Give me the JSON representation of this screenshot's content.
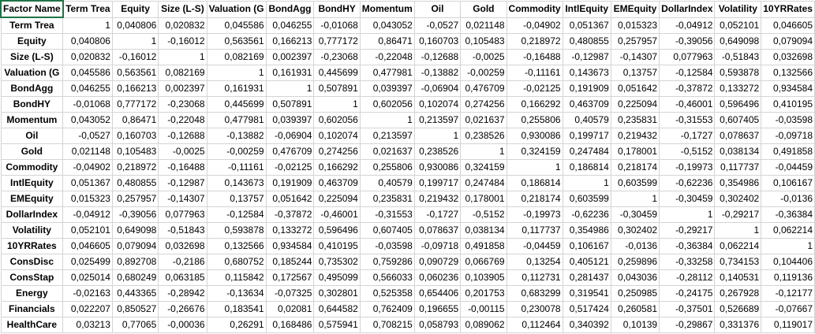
{
  "header": [
    "Factor Name",
    "Term Trea",
    "Equity",
    "Size (L-S)",
    "Valuation (G",
    "BondAgg",
    "BondHY",
    "Momentum",
    "Oil",
    "Gold",
    "Commodity",
    "IntlEquity",
    "EMEquity",
    "DollarIndex",
    "Volatility",
    "10YRRates"
  ],
  "rows": [
    {
      "name": "Term Trea",
      "values": [
        "1",
        "0,040806",
        "0,020832",
        "0,045586",
        "0,046255",
        "-0,01068",
        "0,043052",
        "-0,0527",
        "0,021148",
        "-0,04902",
        "0,051367",
        "0,015323",
        "-0,04912",
        "0,052101",
        "0,046605"
      ]
    },
    {
      "name": "Equity",
      "values": [
        "0,040806",
        "1",
        "-0,16012",
        "0,563561",
        "0,166213",
        "0,777172",
        "0,86471",
        "0,160703",
        "0,105483",
        "0,218972",
        "0,480855",
        "0,257957",
        "-0,39056",
        "0,649098",
        "0,079094"
      ]
    },
    {
      "name": "Size (L-S)",
      "values": [
        "0,020832",
        "-0,16012",
        "1",
        "0,082169",
        "0,002397",
        "-0,23068",
        "-0,22048",
        "-0,12688",
        "-0,0025",
        "-0,16488",
        "-0,12987",
        "-0,14307",
        "0,077963",
        "-0,51843",
        "0,032698"
      ]
    },
    {
      "name": "Valuation (G",
      "values": [
        "0,045586",
        "0,563561",
        "0,082169",
        "1",
        "0,161931",
        "0,445699",
        "0,477981",
        "-0,13882",
        "-0,00259",
        "-0,11161",
        "0,143673",
        "0,13757",
        "-0,12584",
        "0,593878",
        "0,132566"
      ]
    },
    {
      "name": "BondAgg",
      "values": [
        "0,046255",
        "0,166213",
        "0,002397",
        "0,161931",
        "1",
        "0,507891",
        "0,039397",
        "-0,06904",
        "0,476709",
        "-0,02125",
        "0,191909",
        "0,051642",
        "-0,37872",
        "0,133272",
        "0,934584"
      ]
    },
    {
      "name": "BondHY",
      "values": [
        "-0,01068",
        "0,777172",
        "-0,23068",
        "0,445699",
        "0,507891",
        "1",
        "0,602056",
        "0,102074",
        "0,274256",
        "0,166292",
        "0,463709",
        "0,225094",
        "-0,46001",
        "0,596496",
        "0,410195"
      ]
    },
    {
      "name": "Momentum",
      "values": [
        "0,043052",
        "0,86471",
        "-0,22048",
        "0,477981",
        "0,039397",
        "0,602056",
        "1",
        "0,213597",
        "0,021637",
        "0,255806",
        "0,40579",
        "0,235831",
        "-0,31553",
        "0,607405",
        "-0,03598"
      ]
    },
    {
      "name": "Oil",
      "values": [
        "-0,0527",
        "0,160703",
        "-0,12688",
        "-0,13882",
        "-0,06904",
        "0,102074",
        "0,213597",
        "1",
        "0,238526",
        "0,930086",
        "0,199717",
        "0,219432",
        "-0,1727",
        "0,078637",
        "-0,09718"
      ]
    },
    {
      "name": "Gold",
      "values": [
        "0,021148",
        "0,105483",
        "-0,0025",
        "-0,00259",
        "0,476709",
        "0,274256",
        "0,021637",
        "0,238526",
        "1",
        "0,324159",
        "0,247484",
        "0,178001",
        "-0,5152",
        "0,038134",
        "0,491858"
      ]
    },
    {
      "name": "Commodity",
      "values": [
        "-0,04902",
        "0,218972",
        "-0,16488",
        "-0,11161",
        "-0,02125",
        "0,166292",
        "0,255806",
        "0,930086",
        "0,324159",
        "1",
        "0,186814",
        "0,218174",
        "-0,19973",
        "0,117737",
        "-0,04459"
      ]
    },
    {
      "name": "IntlEquity",
      "values": [
        "0,051367",
        "0,480855",
        "-0,12987",
        "0,143673",
        "0,191909",
        "0,463709",
        "0,40579",
        "0,199717",
        "0,247484",
        "0,186814",
        "1",
        "0,603599",
        "-0,62236",
        "0,354986",
        "0,106167"
      ]
    },
    {
      "name": "EMEquity",
      "values": [
        "0,015323",
        "0,257957",
        "-0,14307",
        "0,13757",
        "0,051642",
        "0,225094",
        "0,235831",
        "0,219432",
        "0,178001",
        "0,218174",
        "0,603599",
        "1",
        "-0,30459",
        "0,302402",
        "-0,0136"
      ]
    },
    {
      "name": "DollarIndex",
      "values": [
        "-0,04912",
        "-0,39056",
        "0,077963",
        "-0,12584",
        "-0,37872",
        "-0,46001",
        "-0,31553",
        "-0,1727",
        "-0,5152",
        "-0,19973",
        "-0,62236",
        "-0,30459",
        "1",
        "-0,29217",
        "-0,36384"
      ]
    },
    {
      "name": "Volatility",
      "values": [
        "0,052101",
        "0,649098",
        "-0,51843",
        "0,593878",
        "0,133272",
        "0,596496",
        "0,607405",
        "0,078637",
        "0,038134",
        "0,117737",
        "0,354986",
        "0,302402",
        "-0,29217",
        "1",
        "0,062214"
      ]
    },
    {
      "name": "10YRRates",
      "values": [
        "0,046605",
        "0,079094",
        "0,032698",
        "0,132566",
        "0,934584",
        "0,410195",
        "-0,03598",
        "-0,09718",
        "0,491858",
        "-0,04459",
        "0,106167",
        "-0,0136",
        "-0,36384",
        "0,062214",
        "1"
      ]
    },
    {
      "name": "ConsDisc",
      "values": [
        "0,025499",
        "0,892708",
        "-0,2186",
        "0,680752",
        "0,185244",
        "0,735302",
        "0,759286",
        "0,090729",
        "0,066769",
        "0,13254",
        "0,405121",
        "0,259896",
        "-0,33258",
        "0,734153",
        "0,104406"
      ]
    },
    {
      "name": "ConsStap",
      "values": [
        "0,025014",
        "0,680249",
        "0,063185",
        "0,115842",
        "0,172567",
        "0,495099",
        "0,566033",
        "0,060236",
        "0,103905",
        "0,112731",
        "0,281437",
        "0,043036",
        "-0,28112",
        "0,140531",
        "0,119136"
      ]
    },
    {
      "name": "Energy",
      "values": [
        "-0,02163",
        "0,443365",
        "-0,28942",
        "-0,13634",
        "-0,07325",
        "0,302801",
        "0,525358",
        "0,654406",
        "0,201753",
        "0,683299",
        "0,319541",
        "0,250985",
        "-0,24175",
        "0,267928",
        "-0,12177"
      ]
    },
    {
      "name": "Financials",
      "values": [
        "0,022207",
        "0,850527",
        "-0,26676",
        "0,183541",
        "0,02081",
        "0,644582",
        "0,762409",
        "0,196655",
        "-0,00115",
        "0,230078",
        "0,517424",
        "0,260581",
        "-0,37501",
        "0,526689",
        "-0,07667"
      ]
    },
    {
      "name": "HealthCare",
      "values": [
        "0,03213",
        "0,77065",
        "-0,00036",
        "0,26291",
        "0,168486",
        "0,575941",
        "0,708215",
        "0,058793",
        "0,089062",
        "0,112464",
        "0,340392",
        "0,10139",
        "-0,29867",
        "0,331376",
        "0,119017"
      ]
    }
  ]
}
